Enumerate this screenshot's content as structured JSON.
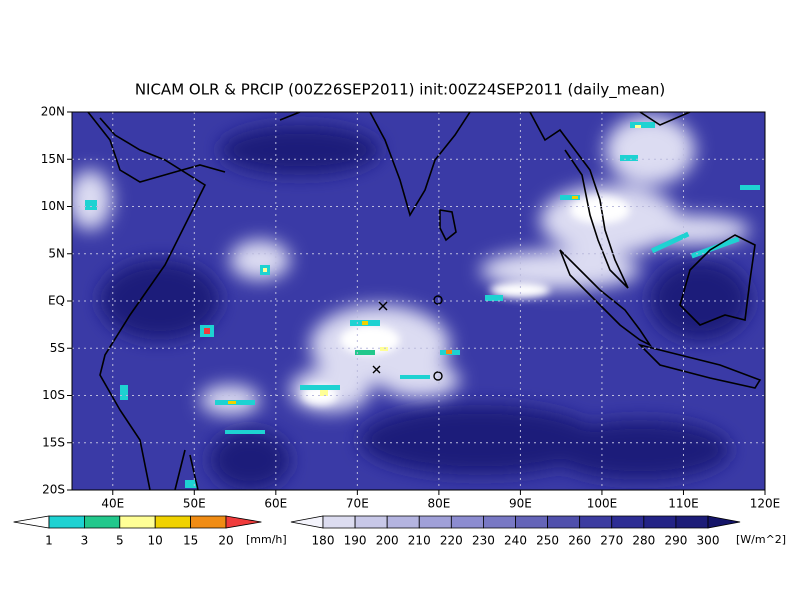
{
  "map": {
    "title": "NICAM OLR & PRCIP (00Z26SEP2011) init:00Z24SEP2011 (daily_mean)",
    "lon_range": [
      35,
      120
    ],
    "lat_range": [
      -20,
      20
    ],
    "lon_ticks": [
      {
        "value": 40,
        "label": "40E"
      },
      {
        "value": 50,
        "label": "50E"
      },
      {
        "value": 60,
        "label": "60E"
      },
      {
        "value": 70,
        "label": "70E"
      },
      {
        "value": 80,
        "label": "80E"
      },
      {
        "value": 90,
        "label": "90E"
      },
      {
        "value": 100,
        "label": "100E"
      },
      {
        "value": 110,
        "label": "110E"
      },
      {
        "value": 120,
        "label": "120E"
      }
    ],
    "lat_ticks": [
      {
        "value": 20,
        "label": "20N"
      },
      {
        "value": 15,
        "label": "15N"
      },
      {
        "value": 10,
        "label": "10N"
      },
      {
        "value": 5,
        "label": "5N"
      },
      {
        "value": 0,
        "label": "EQ"
      },
      {
        "value": -5,
        "label": "5S"
      },
      {
        "value": -10,
        "label": "10S"
      },
      {
        "value": -15,
        "label": "15S"
      },
      {
        "value": -20,
        "label": "20S"
      }
    ]
  },
  "precip_colorbar": {
    "labels": [
      1,
      3,
      5,
      10,
      15,
      20
    ],
    "unit": "[mm/h]",
    "colors": [
      "#ffffff",
      "#1ed2d2",
      "#22c88c",
      "#ffff96",
      "#f0d200",
      "#f08c14",
      "#f03c3c"
    ]
  },
  "olr_colorbar": {
    "labels": [
      180,
      190,
      200,
      210,
      220,
      230,
      240,
      250,
      260,
      270,
      280,
      290,
      300
    ],
    "unit": "[W/m^2]",
    "colors": [
      "#f4f4fc",
      "#dcdcf0",
      "#c8c8e8",
      "#b4b4e0",
      "#a0a0d8",
      "#8c8cd0",
      "#7878c4",
      "#6464b8",
      "#5050ac",
      "#3c3ca0",
      "#2d2d94",
      "#232386",
      "#1c1c78",
      "#141468"
    ]
  }
}
